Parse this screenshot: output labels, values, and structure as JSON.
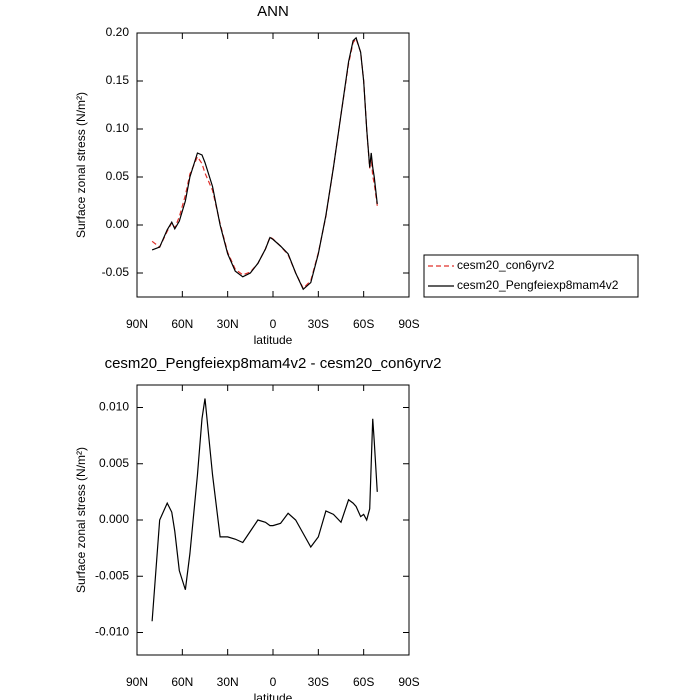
{
  "chart_data": [
    {
      "type": "line",
      "title": "ANN",
      "xlabel": "latitude",
      "ylabel": "Surface zonal stress (N/m²)",
      "x": [
        80,
        75,
        70,
        67,
        65,
        62,
        58,
        55,
        50,
        47,
        45,
        40,
        35,
        30,
        25,
        20,
        15,
        10,
        5,
        2,
        0,
        -5,
        -10,
        -15,
        -20,
        -25,
        -30,
        -35,
        -40,
        -45,
        -50,
        -53,
        -55,
        -58,
        -60,
        -62,
        -64,
        -65,
        -66,
        -67,
        -69
      ],
      "series": [
        {
          "name": "cesm20_con6yrv2",
          "color": "#e0302a",
          "line_style": "dashed",
          "values": [
            -0.017,
            -0.023,
            -0.0065,
            0.0023,
            -0.003,
            0.0085,
            0.031,
            0.053,
            0.071,
            0.064,
            0.054,
            0.036,
            0.0015,
            -0.0285,
            -0.046,
            -0.052,
            -0.049,
            -0.04,
            -0.025,
            -0.0125,
            -0.0145,
            -0.022,
            -0.031,
            -0.05,
            -0.066,
            -0.058,
            -0.029,
            0.009,
            0.06,
            0.115,
            0.168,
            0.19,
            0.194,
            0.18,
            0.15,
            0.1,
            0.059,
            0.07,
            0.051,
            0.043,
            0.02
          ]
        },
        {
          "name": "cesm20_Pengfeiexp8mam4v2",
          "color": "#000000",
          "line_style": "solid",
          "values": [
            -0.026,
            -0.023,
            -0.005,
            0.003,
            -0.004,
            0.004,
            0.025,
            0.05,
            0.075,
            0.073,
            0.065,
            0.04,
            0.0,
            -0.03,
            -0.048,
            -0.054,
            -0.05,
            -0.04,
            -0.025,
            -0.013,
            -0.015,
            -0.022,
            -0.03,
            -0.05,
            -0.067,
            -0.06,
            -0.03,
            0.01,
            0.06,
            0.115,
            0.17,
            0.192,
            0.195,
            0.18,
            0.15,
            0.1,
            0.06,
            0.075,
            0.06,
            0.05,
            0.022
          ]
        }
      ],
      "xlim": [
        90,
        -90
      ],
      "xticks": [
        {
          "value": 90,
          "label": "90N"
        },
        {
          "value": 60,
          "label": "60N"
        },
        {
          "value": 30,
          "label": "30N"
        },
        0,
        {
          "value": -30,
          "label": "30S"
        },
        {
          "value": -60,
          "label": "60S"
        },
        {
          "value": -90,
          "label": "90S"
        }
      ],
      "ylim": [
        -0.075,
        0.2
      ],
      "yticks": [
        {
          "value": -0.05,
          "label": "-0.05"
        },
        {
          "value": 0,
          "label": "0.00"
        },
        {
          "value": 0.05,
          "label": "0.05"
        },
        {
          "value": 0.1,
          "label": "0.10"
        },
        {
          "value": 0.15,
          "label": "0.15"
        },
        {
          "value": 0.2,
          "label": "0.20"
        }
      ]
    },
    {
      "type": "line",
      "title": "cesm20_Pengfeiexp8mam4v2 - cesm20_con6yrv2",
      "xlabel": "latitude",
      "ylabel": "Surface zonal stress (N/m²)",
      "x": [
        80,
        75,
        70,
        67,
        65,
        62,
        58,
        55,
        50,
        47,
        45,
        40,
        35,
        30,
        25,
        20,
        15,
        10,
        5,
        2,
        0,
        -5,
        -10,
        -15,
        -20,
        -25,
        -30,
        -35,
        -40,
        -45,
        -50,
        -53,
        -55,
        -58,
        -60,
        -62,
        -64,
        -65,
        -66,
        -67,
        -69
      ],
      "series": [
        {
          "color": "#000000",
          "line_style": "solid",
          "values": [
            -0.009,
            0.0,
            0.0015,
            0.0007,
            -0.001,
            -0.0045,
            -0.0062,
            -0.003,
            0.004,
            0.009,
            0.0108,
            0.004,
            -0.0015,
            -0.0015,
            -0.0017,
            -0.002,
            -0.001,
            0.0,
            -0.0002,
            -0.0005,
            -0.0005,
            -0.0003,
            0.0006,
            0.0,
            -0.0012,
            -0.0024,
            -0.0015,
            0.0008,
            0.0005,
            -0.0002,
            0.0018,
            0.0015,
            0.0012,
            0.0003,
            0.0005,
            0.0,
            0.001,
            0.005,
            0.009,
            0.007,
            0.0025
          ]
        }
      ],
      "xlim": [
        90,
        -90
      ],
      "xticks": [
        {
          "value": 90,
          "label": "90N"
        },
        {
          "value": 60,
          "label": "60N"
        },
        {
          "value": 30,
          "label": "30N"
        },
        0,
        {
          "value": -30,
          "label": "30S"
        },
        {
          "value": -60,
          "label": "60S"
        },
        {
          "value": -90,
          "label": "90S"
        }
      ],
      "ylim": [
        -0.012,
        0.012
      ],
      "yticks": [
        {
          "value": -0.01,
          "label": "-0.010"
        },
        {
          "value": -0.005,
          "label": "-0.005"
        },
        {
          "value": 0,
          "label": "0.000"
        },
        {
          "value": 0.005,
          "label": "0.005"
        },
        {
          "value": 0.01,
          "label": "0.010"
        }
      ]
    }
  ]
}
